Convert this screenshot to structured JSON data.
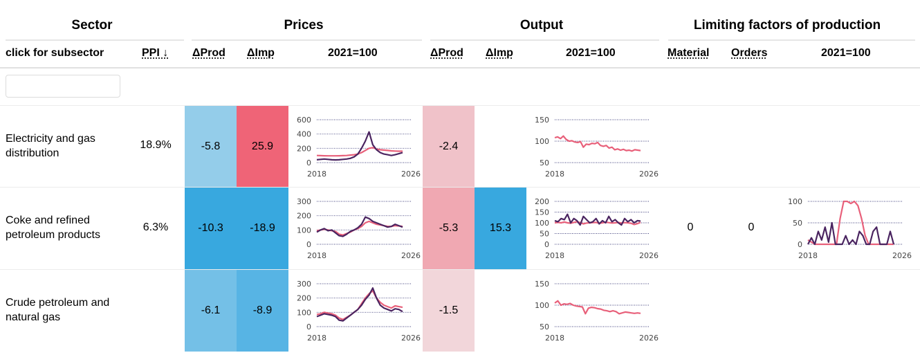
{
  "groups": {
    "sector": "Sector",
    "prices": "Prices",
    "output": "Output",
    "limiting": "Limiting factors of production"
  },
  "columns": {
    "subsector": "click for subsector",
    "ppi": "PPI ↓",
    "prices_dprod": "ΔProd",
    "prices_dimp": "ΔImp",
    "prices_index": "2021=100",
    "output_dprod": "ΔProd",
    "output_dimp": "ΔImp",
    "output_index": "2021=100",
    "material": "Material",
    "orders": "Orders",
    "limiting_index": "2021=100"
  },
  "filter": {
    "value": "",
    "placeholder": ""
  },
  "colors": {
    "blue_light": "#94cdea",
    "blue_mid": "#74c0e7",
    "blue_strong": "#38a8df",
    "blue_imp": "#57b4e4",
    "red_strong": "#ef6477",
    "pink_1": "#f0c2c9",
    "pink_2": "#f0a8b2",
    "pink_3": "#f2d6da",
    "series_pink": "#e8607a",
    "series_purple": "#4a2460"
  },
  "rows": [
    {
      "name": "Electricity and gas distribution",
      "ppi": "18.9%",
      "prices_dprod": "-5.8",
      "prices_dimp": "25.9",
      "output_dprod": "-2.4",
      "output_dimp": "",
      "material": "",
      "orders": ""
    },
    {
      "name": "Coke and refined petroleum products",
      "ppi": "6.3%",
      "prices_dprod": "-10.3",
      "prices_dimp": "-18.9",
      "output_dprod": "-5.3",
      "output_dimp": "15.3",
      "material": "0",
      "orders": "0"
    },
    {
      "name": "Crude petroleum and natural gas",
      "ppi": "",
      "prices_dprod": "-6.1",
      "prices_dimp": "-8.9",
      "output_dprod": "-1.5",
      "output_dimp": "",
      "material": "",
      "orders": ""
    }
  ],
  "sparks": {
    "elec_prices": {
      "ymin": 0,
      "ymax": 600,
      "ticks": [
        "600",
        "400",
        "200",
        "0"
      ],
      "xstart": "2018",
      "xend": "2026",
      "series": [
        {
          "color": "#e8607a",
          "values": [
            100,
            98,
            96,
            95,
            95,
            95,
            96,
            98,
            100,
            105,
            110,
            120,
            140,
            170,
            200,
            210,
            190,
            180,
            175,
            170,
            165,
            162,
            160,
            160
          ]
        },
        {
          "color": "#4a2460",
          "values": [
            40,
            45,
            50,
            45,
            40,
            38,
            40,
            45,
            50,
            60,
            80,
            120,
            200,
            300,
            430,
            250,
            180,
            140,
            120,
            110,
            100,
            110,
            125,
            140
          ]
        }
      ]
    },
    "elec_output": {
      "ymin": 50,
      "ymax": 150,
      "ticks": [
        "150",
        "100",
        "50"
      ],
      "xstart": "2018",
      "xend": "2026",
      "series": [
        {
          "color": "#e8607a",
          "values": [
            108,
            110,
            106,
            112,
            104,
            100,
            101,
            98,
            97,
            99,
            86,
            93,
            92,
            95,
            94,
            97,
            90,
            88,
            90,
            84,
            86,
            80,
            82,
            79,
            81,
            78,
            79,
            77,
            80,
            79,
            78
          ]
        }
      ]
    },
    "coke_prices": {
      "ymin": 0,
      "ymax": 300,
      "ticks": [
        "300",
        "200",
        "100",
        "0"
      ],
      "xstart": "2018",
      "xend": "2026",
      "series": [
        {
          "color": "#e8607a",
          "values": [
            95,
            100,
            105,
            100,
            95,
            90,
            70,
            65,
            75,
            85,
            100,
            110,
            125,
            150,
            160,
            150,
            140,
            135,
            130,
            125,
            125,
            130,
            128,
            125
          ]
        },
        {
          "color": "#4a2460",
          "values": [
            85,
            100,
            110,
            95,
            100,
            80,
            60,
            55,
            70,
            90,
            100,
            115,
            140,
            190,
            180,
            160,
            150,
            140,
            130,
            120,
            125,
            140,
            130,
            120
          ]
        }
      ]
    },
    "coke_output": {
      "ymin": 0,
      "ymax": 200,
      "ticks": [
        "200",
        "150",
        "100",
        "50",
        "0"
      ],
      "xstart": "2018",
      "xend": "2026",
      "series": [
        {
          "color": "#e8607a",
          "values": [
            100,
            102,
            100,
            104,
            100,
            98,
            102,
            105,
            101,
            95,
            99,
            100,
            101,
            102,
            98,
            100,
            103,
            101,
            99,
            100,
            102,
            99,
            101,
            100,
            98,
            92,
            96,
            102
          ]
        },
        {
          "color": "#4a2460",
          "values": [
            110,
            105,
            120,
            115,
            140,
            100,
            120,
            110,
            90,
            130,
            115,
            100,
            105,
            120,
            95,
            110,
            100,
            130,
            105,
            115,
            100,
            90,
            120,
            105,
            115,
            100,
            110,
            108
          ]
        }
      ]
    },
    "coke_limiting": {
      "ymin": 0,
      "ymax": 100,
      "ticks": [
        "100",
        "50",
        "0"
      ],
      "xstart": "2018",
      "xend": "2026",
      "series": [
        {
          "color": "#e8607a",
          "values": [
            10,
            5,
            0,
            0,
            0,
            0,
            0,
            0,
            0,
            60,
            100,
            100,
            95,
            100,
            90,
            60,
            20,
            0,
            0,
            0,
            0,
            0,
            0,
            0,
            0
          ]
        },
        {
          "color": "#4a2460",
          "values": [
            0,
            15,
            0,
            30,
            10,
            40,
            5,
            50,
            0,
            0,
            0,
            20,
            0,
            10,
            0,
            30,
            20,
            0,
            0,
            30,
            40,
            0,
            0,
            0,
            30,
            0
          ]
        }
      ]
    },
    "crude_prices": {
      "ymin": 0,
      "ymax": 300,
      "ticks": [
        "300",
        "200",
        "100",
        "0"
      ],
      "xstart": "2018",
      "xend": "2026",
      "series": [
        {
          "color": "#e8607a",
          "values": [
            85,
            90,
            100,
            95,
            90,
            80,
            60,
            50,
            65,
            80,
            100,
            120,
            160,
            200,
            230,
            250,
            200,
            170,
            150,
            140,
            130,
            145,
            140,
            135
          ]
        },
        {
          "color": "#4a2460",
          "values": [
            70,
            80,
            90,
            85,
            80,
            70,
            45,
            40,
            60,
            80,
            100,
            120,
            150,
            190,
            220,
            270,
            200,
            150,
            130,
            120,
            110,
            125,
            120,
            105
          ]
        }
      ]
    },
    "crude_output": {
      "ymin": 50,
      "ymax": 150,
      "ticks": [
        "150",
        "100",
        "50"
      ],
      "xstart": "2018",
      "xend": "2026",
      "series": [
        {
          "color": "#e8607a",
          "values": [
            105,
            110,
            100,
            103,
            102,
            104,
            100,
            98,
            97,
            96,
            80,
            93,
            95,
            94,
            92,
            91,
            88,
            87,
            85,
            87,
            85,
            80,
            82,
            84,
            83,
            82,
            81,
            82,
            81
          ]
        }
      ]
    }
  }
}
